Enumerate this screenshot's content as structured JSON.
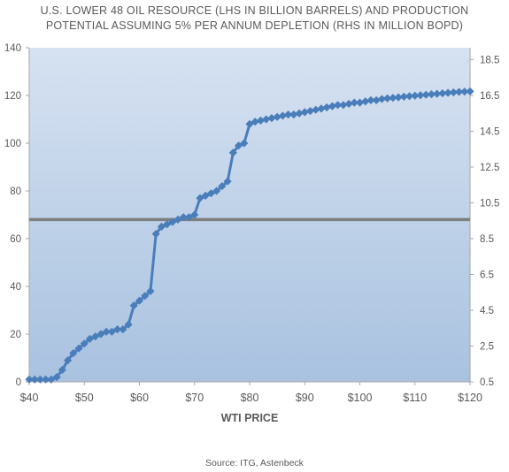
{
  "chart_data": {
    "type": "line",
    "title_line1": "U.S. LOWER 48 OIL RESOURCE (LHS IN BILLION BARRELS) AND PRODUCTION",
    "title_line2": "POTENTIAL ASSUMING 5% PER ANNUM DEPLETION (RHS IN MILLION BOPD)",
    "xlabel": "WTI PRICE",
    "source": "Source: ITG, Astenbeck",
    "xlim": [
      40,
      120
    ],
    "ylim": [
      0,
      140
    ],
    "y2lim": [
      0.5,
      19.17
    ],
    "x_ticks": [
      40,
      50,
      60,
      70,
      80,
      90,
      100,
      110,
      120
    ],
    "x_tick_labels": [
      "$40",
      "$50",
      "$60",
      "$70",
      "$80",
      "$90",
      "$100",
      "$110",
      "$120"
    ],
    "y_ticks": [
      0,
      20,
      40,
      60,
      80,
      100,
      120,
      140
    ],
    "y_tick_labels": [
      "0",
      "20",
      "40",
      "60",
      "80",
      "100",
      "120",
      "140"
    ],
    "y2_ticks": [
      0.5,
      2.5,
      4.5,
      6.5,
      8.5,
      10.5,
      12.5,
      14.5,
      16.5,
      18.5
    ],
    "y2_tick_labels": [
      "0.5",
      "2.5",
      "4.5",
      "6.5",
      "8.5",
      "10.5",
      "12.5",
      "14.5",
      "16.5",
      "18.5"
    ],
    "grid": false,
    "legend": "none",
    "colors": {
      "series": "#4a7ebb",
      "reference_line": "#7f7f7f",
      "plot_bg_top": "#d6e2f1",
      "plot_bg_bottom": "#a9c2e0",
      "axis": "#a6a6a6",
      "text": "#595959"
    },
    "reference_line_y": 68,
    "series": [
      {
        "x": [
          40,
          41,
          42,
          43,
          44,
          45,
          46,
          47,
          48,
          49,
          50,
          51,
          52,
          53,
          54,
          55,
          56,
          57,
          58,
          59,
          60,
          61,
          62,
          63,
          64,
          65,
          66,
          67,
          68,
          69,
          70,
          71,
          72,
          73,
          74,
          75,
          76,
          77,
          78,
          79,
          80,
          81,
          82,
          83,
          84,
          85,
          86,
          87,
          88,
          89,
          90,
          91,
          92,
          93,
          94,
          95,
          96,
          97,
          98,
          99,
          100,
          101,
          102,
          103,
          104,
          105,
          106,
          107,
          108,
          109,
          110,
          111,
          112,
          113,
          114,
          115,
          116,
          117,
          118,
          119,
          120
        ],
        "y": [
          1,
          1,
          1,
          1,
          1,
          2,
          5,
          9,
          12,
          14,
          16,
          18,
          19,
          20,
          21,
          21,
          22,
          22,
          24,
          32,
          34,
          36,
          38,
          62,
          65,
          66,
          67,
          68,
          69,
          69,
          70,
          77,
          78,
          79,
          80,
          82,
          84,
          96,
          99,
          100,
          108,
          109,
          109.5,
          110,
          110.5,
          111,
          111.5,
          112,
          112,
          112.5,
          113,
          113.5,
          114,
          114.5,
          115,
          115.5,
          116,
          116,
          116.5,
          117,
          117,
          117.5,
          118,
          118,
          118.5,
          118.8,
          119,
          119.2,
          119.5,
          119.7,
          119.9,
          120.1,
          120.3,
          120.5,
          120.7,
          120.9,
          121.1,
          121.3,
          121.5,
          121.6,
          121.7
        ]
      }
    ]
  }
}
